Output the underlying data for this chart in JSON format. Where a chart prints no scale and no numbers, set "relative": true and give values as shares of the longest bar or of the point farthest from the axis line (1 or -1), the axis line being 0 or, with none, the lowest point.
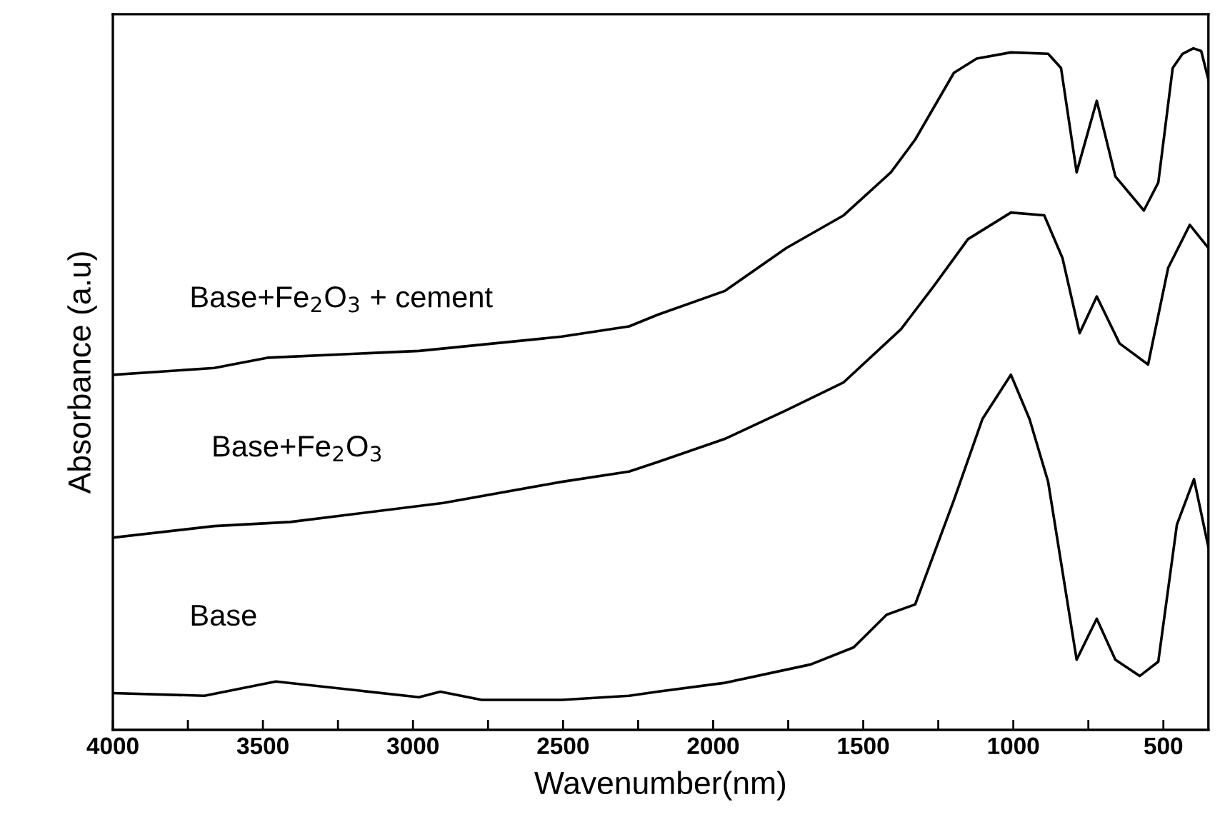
{
  "chart_data": {
    "type": "line",
    "relative": true,
    "xlabel": "Wavenumber(nm)",
    "ylabel": "Absorbance (a.u)",
    "xlim": [
      4000,
      350
    ],
    "xticks": [
      4000,
      {
        "value": 3750,
        "label": null
      },
      3500,
      {
        "value": 3250,
        "label": null
      },
      3000,
      {
        "value": 2750,
        "label": null
      },
      2500,
      {
        "value": 2250,
        "label": null
      },
      2000,
      {
        "value": 1750,
        "label": null
      },
      1500,
      {
        "value": 1250,
        "label": null
      },
      1000,
      {
        "value": 750,
        "label": null
      },
      500
    ],
    "grid": false,
    "legend": false,
    "marker": "none",
    "line_style": "solid",
    "series": [
      {
        "name": "Base+Fe$_{2}$O$_{3}$ + cement",
        "color": "#000000",
        "x": [
          4000,
          3662,
          3485,
          2980,
          2504,
          2280,
          2185,
          1961,
          1756,
          1565,
          1408,
          1327,
          1198,
          1122,
          1008,
          884,
          841,
          789,
          722,
          660,
          565,
          517,
          469,
          436,
          400,
          374,
          350
        ],
        "values": [
          0.521,
          0.531,
          0.546,
          0.556,
          0.577,
          0.592,
          0.609,
          0.644,
          0.707,
          0.755,
          0.818,
          0.866,
          0.964,
          0.985,
          0.994,
          0.992,
          0.971,
          0.818,
          0.923,
          0.812,
          0.762,
          0.803,
          0.971,
          0.992,
          1.0,
          0.996,
          0.954
        ]
      },
      {
        "name": "Base+Fe$_{2}$O$_{3}$",
        "color": "#000000",
        "x": [
          4000,
          3662,
          3409,
          2899,
          2504,
          2280,
          2185,
          1961,
          1756,
          1565,
          1374,
          1265,
          1151,
          1008,
          897,
          836,
          779,
          722,
          646,
          551,
          484,
          412,
          350
        ],
        "values": [
          0.282,
          0.299,
          0.305,
          0.333,
          0.364,
          0.379,
          0.393,
          0.427,
          0.469,
          0.51,
          0.588,
          0.651,
          0.72,
          0.759,
          0.755,
          0.692,
          0.582,
          0.636,
          0.567,
          0.536,
          0.678,
          0.741,
          0.707
        ]
      },
      {
        "name": "Base",
        "color": "#000000",
        "x": [
          4000,
          3695,
          3457,
          2980,
          2909,
          2771,
          2504,
          2280,
          2185,
          1961,
          1675,
          1532,
          1422,
          1327,
          1198,
          1103,
          1008,
          946,
          884,
          789,
          722,
          660,
          579,
          517,
          455,
          398,
          350
        ],
        "values": [
          0.054,
          0.05,
          0.071,
          0.048,
          0.056,
          0.044,
          0.044,
          0.05,
          0.056,
          0.069,
          0.096,
          0.121,
          0.169,
          0.184,
          0.337,
          0.456,
          0.521,
          0.456,
          0.364,
          0.103,
          0.163,
          0.103,
          0.079,
          0.1,
          0.301,
          0.368,
          0.268
        ]
      }
    ]
  }
}
